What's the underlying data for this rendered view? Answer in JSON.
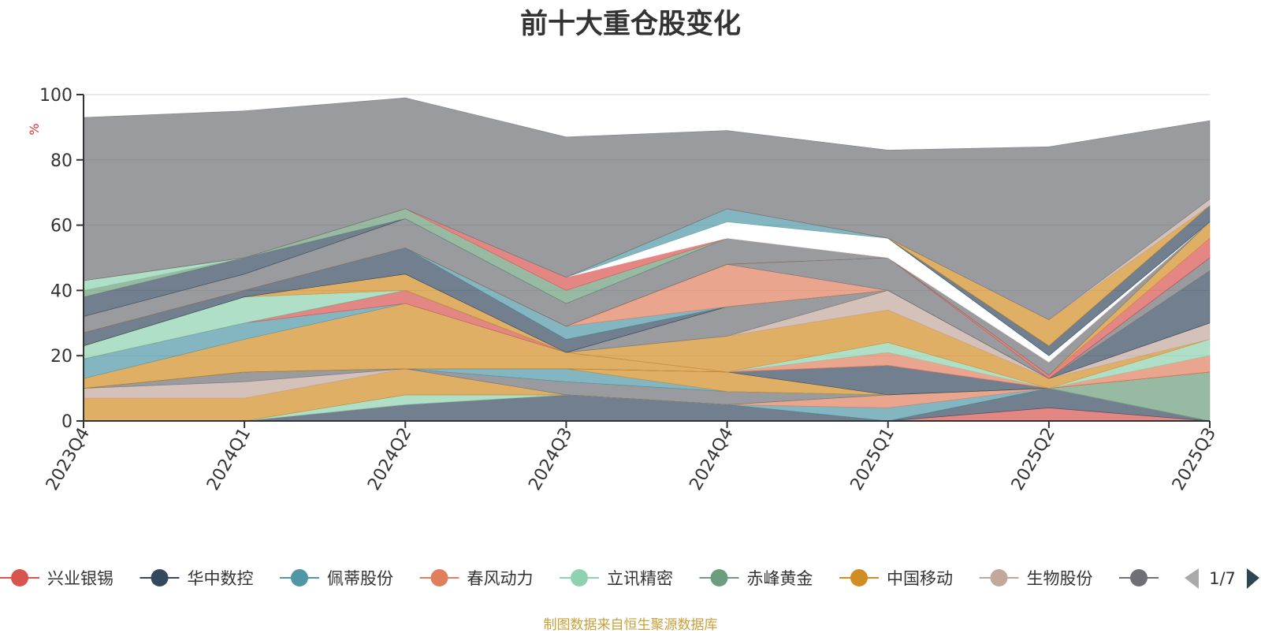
{
  "chart_data": {
    "type": "area",
    "stacked": true,
    "title": "前十大重仓股变化",
    "ylabel": "%",
    "ylim": [
      0,
      100
    ],
    "yticks": [
      "0",
      "20",
      "40",
      "60",
      "80",
      "100"
    ],
    "categories": [
      "2023Q4",
      "2024Q1",
      "2024Q2",
      "2024Q3",
      "2024Q4",
      "2025Q1",
      "2025Q2",
      "2025Q3"
    ],
    "grid": true,
    "legend_position": "bottom",
    "series": [
      {
        "name": "兴业银锡",
        "color": "#d9534f",
        "values": [
          0,
          0,
          0,
          0,
          0,
          0,
          4,
          0
        ]
      },
      {
        "name": "华中数控",
        "color": "#34495e",
        "values": [
          0,
          0,
          5,
          8,
          5,
          0,
          6,
          0
        ]
      },
      {
        "name": "佩蒂股份",
        "color": "#4f97a5",
        "values": [
          0,
          0,
          0,
          0,
          0,
          4,
          0,
          0
        ]
      },
      {
        "name": "春风动力",
        "color": "#e07f5e",
        "values": [
          0,
          0,
          0,
          0,
          0,
          4,
          0,
          0
        ]
      },
      {
        "name": "立讯精密",
        "color": "#8fd1b1",
        "values": [
          0,
          0,
          3,
          0,
          0,
          0,
          0,
          0
        ]
      },
      {
        "name": "赤峰黄金",
        "color": "#6c9d7c",
        "values": [
          0,
          0,
          0,
          0,
          0,
          0,
          0,
          15
        ]
      },
      {
        "name": "中国移动",
        "color": "#d18d24",
        "values": [
          7,
          7,
          8,
          0,
          0,
          0,
          0,
          0
        ]
      },
      {
        "name": "生物股份",
        "color": "#c1a79c",
        "values": [
          3,
          5,
          0,
          0,
          0,
          0,
          0,
          0
        ]
      },
      {
        "value_hidden": true,
        "color": "#6e7075",
        "values": [
          0,
          3,
          0,
          4,
          4,
          0,
          0,
          0
        ]
      },
      {
        "value_hidden": true,
        "color": "#4f97a5",
        "values": [
          0,
          0,
          0,
          4,
          0,
          0,
          0,
          0
        ]
      },
      {
        "value_hidden": true,
        "color": "#d18d24",
        "values": [
          0,
          0,
          0,
          0,
          6,
          0,
          0,
          0
        ]
      },
      {
        "value_hidden": true,
        "color": "#34495e",
        "values": [
          0,
          0,
          0,
          0,
          0,
          9,
          0,
          0
        ]
      },
      {
        "value_hidden": true,
        "color": "#d18d24",
        "values": [
          3,
          10,
          20,
          5,
          0,
          0,
          0,
          0
        ]
      },
      {
        "value_hidden": true,
        "color": "#4f97a5",
        "values": [
          6,
          5,
          0,
          0,
          0,
          0,
          0,
          0
        ]
      },
      {
        "value_hidden": true,
        "color": "#d9534f",
        "values": [
          0,
          0,
          4,
          0,
          0,
          0,
          0,
          0
        ]
      },
      {
        "value_hidden": true,
        "color": "#e07f5e",
        "values": [
          0,
          0,
          0,
          0,
          0,
          4,
          0,
          5
        ]
      },
      {
        "value_hidden": true,
        "color": "#8fd1b1",
        "values": [
          0,
          0,
          0,
          0,
          0,
          3,
          0,
          5
        ]
      },
      {
        "value_hidden": true,
        "color": "#d18d24",
        "values": [
          0,
          0,
          0,
          0,
          11,
          10,
          3,
          0
        ]
      },
      {
        "value_hidden": true,
        "color": "#c1a79c",
        "values": [
          0,
          0,
          0,
          0,
          0,
          6,
          0,
          5
        ]
      },
      {
        "value_hidden": true,
        "color": "#6e7075",
        "values": [
          0,
          0,
          0,
          0,
          9,
          0,
          0,
          0
        ]
      },
      {
        "value_hidden": true,
        "color": "#34495e",
        "values": [
          0,
          0,
          0,
          0,
          0,
          0,
          0,
          16
        ]
      },
      {
        "value_hidden": true,
        "color": "#8fd1b1",
        "values": [
          4,
          8,
          0,
          0,
          0,
          0,
          0,
          0
        ]
      },
      {
        "value_hidden": true,
        "color": "#d18d24",
        "values": [
          0,
          0,
          5,
          0,
          0,
          0,
          0,
          0
        ]
      },
      {
        "value_hidden": true,
        "color": "#6e7075",
        "values": [
          0,
          0,
          0,
          0,
          0,
          0,
          0,
          4
        ]
      },
      {
        "value_hidden": true,
        "color": "#34495e",
        "values": [
          4,
          2,
          8,
          4,
          0,
          0,
          0,
          0
        ]
      },
      {
        "value_hidden": true,
        "color": "#4f97a5",
        "values": [
          0,
          0,
          0,
          4,
          0,
          0,
          0,
          0
        ]
      },
      {
        "value_hidden": true,
        "color": "#e07f5e",
        "values": [
          0,
          0,
          0,
          0,
          13,
          0,
          0,
          0
        ]
      },
      {
        "value_hidden": true,
        "color": "#6e7075",
        "values": [
          0,
          0,
          0,
          0,
          0,
          10,
          0,
          0
        ]
      },
      {
        "value_hidden": true,
        "color": "#d9534f",
        "values": [
          0,
          0,
          0,
          0,
          0,
          0,
          1,
          6
        ]
      },
      {
        "value_hidden": true,
        "color": "#d18d24",
        "values": [
          0,
          0,
          0,
          0,
          0,
          0,
          0,
          5
        ]
      },
      {
        "value_hidden": true,
        "color": "#6e7075",
        "values": [
          5,
          5,
          9,
          7,
          8,
          0,
          4,
          0
        ]
      },
      {
        "value_hidden": true,
        "color": "#34495e",
        "values": [
          6,
          5,
          0,
          0,
          0,
          0,
          0,
          0
        ]
      },
      {
        "value_hidden": true,
        "color": "#6c9d7c",
        "values": [
          2,
          0,
          3,
          4,
          0,
          0,
          0,
          0
        ]
      },
      {
        "value_hidden": true,
        "color": "#8fd1b1",
        "values": [
          3,
          0,
          0,
          0,
          0,
          0,
          0,
          0
        ]
      },
      {
        "value_hidden": true,
        "color": "#d9534f",
        "values": [
          0,
          0,
          0,
          4,
          0,
          0,
          0,
          0
        ]
      },
      {
        "value_hidden": true,
        "color": "#ffffff",
        "values": [
          0,
          0,
          0,
          0,
          5,
          6,
          2,
          0
        ]
      },
      {
        "value_hidden": true,
        "color": "#4f97a5",
        "values": [
          0,
          0,
          0,
          0,
          4,
          0,
          0,
          0
        ]
      },
      {
        "value_hidden": true,
        "color": "#34495e",
        "values": [
          0,
          0,
          0,
          0,
          0,
          0,
          3,
          5
        ]
      },
      {
        "value_hidden": true,
        "color": "#d18d24",
        "values": [
          0,
          0,
          0,
          0,
          0,
          0,
          8,
          0
        ]
      },
      {
        "value_hidden": true,
        "color": "#c1a79c",
        "values": [
          0,
          0,
          0,
          0,
          0,
          0,
          0,
          2
        ]
      },
      {
        "value_hidden": true,
        "color": "#6e7075",
        "values": [
          50,
          45,
          34,
          43,
          24,
          27,
          53,
          24
        ]
      }
    ]
  },
  "legend": {
    "items": [
      {
        "label": "兴业银锡",
        "color": "#d9534f"
      },
      {
        "label": "华中数控",
        "color": "#34495e"
      },
      {
        "label": "佩蒂股份",
        "color": "#4f97a5"
      },
      {
        "label": "春风动力",
        "color": "#e07f5e"
      },
      {
        "label": "立讯精密",
        "color": "#8fd1b1"
      },
      {
        "label": "赤峰黄金",
        "color": "#6c9d7c"
      },
      {
        "label": "中国移动",
        "color": "#d18d24"
      },
      {
        "label": "生物股份",
        "color": "#c1a79c"
      },
      {
        "label": "",
        "color": "#6e7075"
      }
    ],
    "page": "1/7",
    "prev_icon": "triangle-left-icon",
    "next_icon": "triangle-right-icon"
  },
  "source_note": "制图数据来自恒生聚源数据库"
}
